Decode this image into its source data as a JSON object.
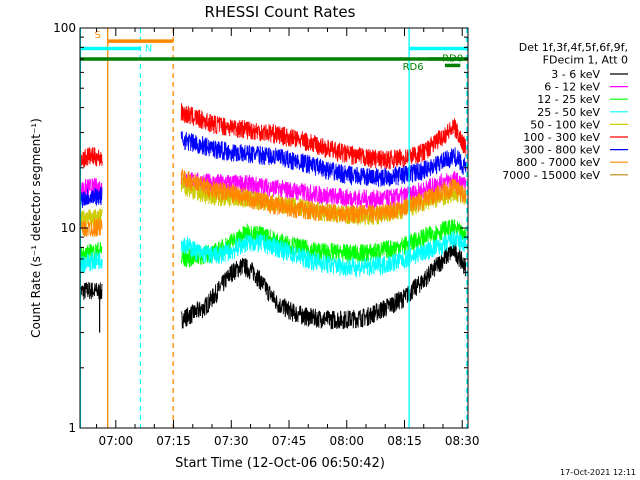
{
  "chart_data": {
    "type": "line",
    "title": "RHESSI Count Rates",
    "xlabel": "Start Time (12-Oct-06 06:50:42)",
    "ylabel": "Count Rate (s⁻¹ detector segment⁻¹)",
    "y_scale": "log",
    "ylim": [
      1,
      100
    ],
    "y_tick_labels": [
      "1",
      "10",
      "100"
    ],
    "xlim_minutes_since_0650": [
      0.7,
      101.5
    ],
    "x_ticks": [
      {
        "label": "07:00",
        "minute": 10
      },
      {
        "label": "07:15",
        "minute": 25
      },
      {
        "label": "07:30",
        "minute": 40
      },
      {
        "label": "07:45",
        "minute": 55
      },
      {
        "label": "08:00",
        "minute": 70
      },
      {
        "label": "08:15",
        "minute": 85
      },
      {
        "label": "08:30",
        "minute": 100
      }
    ],
    "legend_header": [
      "Det 1f,3f,4f,5f,6f,9f,",
      "FDecim 1, Att 0"
    ],
    "legend_position": "right",
    "series": [
      {
        "name": "3 - 6 keV",
        "color": "#000000",
        "segments": [
          {
            "start": 0.7,
            "points": [
              [
                0.7,
                4.8
              ],
              [
                3,
                4.9
              ],
              [
                6.5,
                4.8
              ]
            ]
          },
          {
            "start": 27,
            "points": [
              [
                27,
                3.5
              ],
              [
                33,
                4.0
              ],
              [
                37,
                5.0
              ],
              [
                40,
                6.0
              ],
              [
                43,
                6.5
              ],
              [
                46,
                6.0
              ],
              [
                49,
                5.0
              ],
              [
                52,
                4.2
              ],
              [
                56,
                3.8
              ],
              [
                60,
                3.6
              ],
              [
                65,
                3.5
              ],
              [
                70,
                3.5
              ],
              [
                75,
                3.6
              ],
              [
                80,
                4.0
              ],
              [
                85,
                4.5
              ],
              [
                90,
                5.5
              ],
              [
                95,
                7.0
              ],
              [
                98,
                7.8
              ],
              [
                101,
                6.3
              ]
            ]
          }
        ]
      },
      {
        "name": "6 - 12 keV",
        "color": "#ff00ff",
        "segments": [
          {
            "start": 0.7,
            "points": [
              [
                0.7,
                15.5
              ],
              [
                3,
                16
              ],
              [
                6.5,
                16
              ]
            ]
          },
          {
            "start": 27,
            "points": [
              [
                27,
                17.5
              ],
              [
                32,
                17
              ],
              [
                36,
                16.8
              ],
              [
                40,
                16.8
              ],
              [
                45,
                16.5
              ],
              [
                50,
                16
              ],
              [
                55,
                15.5
              ],
              [
                60,
                15
              ],
              [
                65,
                14.5
              ],
              [
                70,
                14.2
              ],
              [
                75,
                14
              ],
              [
                80,
                14
              ],
              [
                85,
                14.5
              ],
              [
                90,
                15.5
              ],
              [
                95,
                17
              ],
              [
                98,
                17.5
              ],
              [
                101,
                16
              ]
            ]
          }
        ]
      },
      {
        "name": "12 - 25 keV",
        "color": "#00ff00",
        "segments": [
          {
            "start": 0.7,
            "points": [
              [
                0.7,
                7.3
              ],
              [
                3,
                7.5
              ],
              [
                6.5,
                7.8
              ]
            ]
          },
          {
            "start": 27,
            "points": [
              [
                27,
                7.0
              ],
              [
                32,
                7.3
              ],
              [
                36,
                7.6
              ],
              [
                40,
                8.5
              ],
              [
                44,
                9.5
              ],
              [
                48,
                9.3
              ],
              [
                52,
                8.6
              ],
              [
                56,
                8.2
              ],
              [
                60,
                7.8
              ],
              [
                65,
                7.6
              ],
              [
                70,
                7.5
              ],
              [
                75,
                7.5
              ],
              [
                80,
                7.8
              ],
              [
                85,
                8.2
              ],
              [
                90,
                9.0
              ],
              [
                95,
                9.8
              ],
              [
                98,
                10.0
              ],
              [
                101,
                9.0
              ]
            ]
          }
        ]
      },
      {
        "name": "25 - 50 keV",
        "color": "#00ffff",
        "segments": [
          {
            "start": 0.7,
            "points": [
              [
                0.7,
                6.6
              ],
              [
                3,
                6.8
              ],
              [
                6.5,
                7.0
              ]
            ]
          },
          {
            "start": 27,
            "points": [
              [
                27,
                8.5
              ],
              [
                32,
                7.5
              ],
              [
                36,
                7.3
              ],
              [
                40,
                7.7
              ],
              [
                44,
                8.5
              ],
              [
                48,
                8.4
              ],
              [
                52,
                8.0
              ],
              [
                56,
                7.4
              ],
              [
                60,
                7.0
              ],
              [
                65,
                6.6
              ],
              [
                70,
                6.4
              ],
              [
                75,
                6.4
              ],
              [
                80,
                6.6
              ],
              [
                85,
                7.0
              ],
              [
                90,
                7.6
              ],
              [
                95,
                8.2
              ],
              [
                98,
                8.8
              ],
              [
                101,
                8.2
              ]
            ]
          }
        ]
      },
      {
        "name": "50 - 100 keV",
        "color": "#cccc00",
        "segments": [
          {
            "start": 0.7,
            "points": [
              [
                0.7,
                11
              ],
              [
                3,
                11.2
              ],
              [
                6.5,
                11.3
              ]
            ]
          },
          {
            "start": 27,
            "points": [
              [
                27,
                16.5
              ],
              [
                32,
                15
              ],
              [
                36,
                14.5
              ],
              [
                40,
                14.3
              ],
              [
                45,
                14
              ],
              [
                50,
                13.5
              ],
              [
                55,
                13
              ],
              [
                60,
                12.5
              ],
              [
                65,
                12
              ],
              [
                70,
                11.7
              ],
              [
                75,
                11.5
              ],
              [
                80,
                11.8
              ],
              [
                85,
                12.5
              ],
              [
                90,
                13.5
              ],
              [
                95,
                14.5
              ],
              [
                98,
                15
              ],
              [
                101,
                14.5
              ]
            ]
          }
        ]
      },
      {
        "name": "100 - 300 keV",
        "color": "#ff0000",
        "segments": [
          {
            "start": 0.7,
            "points": [
              [
                0.7,
                22
              ],
              [
                3,
                23
              ],
              [
                6.5,
                22.5
              ]
            ]
          },
          {
            "start": 27,
            "points": [
              [
                27,
                38
              ],
              [
                32,
                35
              ],
              [
                36,
                33
              ],
              [
                40,
                32
              ],
              [
                45,
                31
              ],
              [
                50,
                30
              ],
              [
                55,
                28.5
              ],
              [
                60,
                27
              ],
              [
                65,
                25
              ],
              [
                70,
                23.5
              ],
              [
                75,
                22.5
              ],
              [
                80,
                22
              ],
              [
                85,
                22.5
              ],
              [
                90,
                24
              ],
              [
                95,
                29
              ],
              [
                98,
                32
              ],
              [
                101,
                25
              ]
            ]
          }
        ]
      },
      {
        "name": "300 - 800 keV",
        "color": "#0000ff",
        "segments": [
          {
            "start": 0.7,
            "points": [
              [
                0.7,
                14
              ],
              [
                3,
                14.5
              ],
              [
                6.5,
                14.5
              ]
            ]
          },
          {
            "start": 27,
            "points": [
              [
                27,
                28
              ],
              [
                32,
                26
              ],
              [
                36,
                25
              ],
              [
                40,
                24
              ],
              [
                45,
                23.5
              ],
              [
                50,
                23
              ],
              [
                55,
                22
              ],
              [
                60,
                21
              ],
              [
                65,
                19.5
              ],
              [
                70,
                18.5
              ],
              [
                75,
                18
              ],
              [
                80,
                18
              ],
              [
                85,
                18.5
              ],
              [
                90,
                19.5
              ],
              [
                95,
                21.5
              ],
              [
                98,
                23
              ],
              [
                101,
                20
              ]
            ]
          }
        ]
      },
      {
        "name": "800 - 7000 keV",
        "color": "#ff8800",
        "segments": [
          {
            "start": 0.7,
            "points": [
              [
                0.7,
                9.8
              ],
              [
                3,
                10
              ],
              [
                6.5,
                10.2
              ]
            ]
          },
          {
            "start": 27,
            "points": [
              [
                27,
                18
              ],
              [
                32,
                16.5
              ],
              [
                36,
                15.5
              ],
              [
                40,
                15
              ],
              [
                45,
                14
              ],
              [
                50,
                13.2
              ],
              [
                55,
                12.7
              ],
              [
                60,
                12.3
              ],
              [
                65,
                12
              ],
              [
                70,
                11.8
              ],
              [
                75,
                11.8
              ],
              [
                80,
                12
              ],
              [
                85,
                12.8
              ],
              [
                90,
                13.8
              ],
              [
                95,
                15.3
              ],
              [
                98,
                16
              ],
              [
                101,
                14.5
              ]
            ]
          }
        ]
      },
      {
        "name": "7000 - 15000 keV",
        "color": "#b8860b",
        "segments": []
      }
    ],
    "vertical_lines": [
      {
        "minute": 0.8,
        "color": "#00ffff",
        "style": "solid"
      },
      {
        "minute": 7.9,
        "color": "#ff8800",
        "style": "solid"
      },
      {
        "minute": 16.4,
        "color": "#00ffff",
        "style": "dashed"
      },
      {
        "minute": 24.9,
        "color": "#ff8800",
        "style": "dashed"
      },
      {
        "minute": 86.2,
        "color": "#00ffff",
        "style": "solid"
      },
      {
        "minute": 101.2,
        "color": "#00ffff",
        "style": "dashed"
      }
    ],
    "flag_bars": [
      {
        "label": "S",
        "color": "#ff8800",
        "from": 7.9,
        "to": 24.9,
        "y": 86
      },
      {
        "label": "N",
        "color": "#00ffff",
        "from": 0.8,
        "to": 16.4,
        "y": 79
      },
      {
        "label": "",
        "color": "#00ffff",
        "from": 86.2,
        "to": 101.2,
        "y": 79
      },
      {
        "label": "",
        "color": "#008000",
        "from": 0.8,
        "to": 101.5,
        "y": 70
      },
      {
        "label": "RD0",
        "color": "#008000",
        "from": 95.5,
        "to": 99.5,
        "y": 65
      },
      {
        "label": "RD6",
        "color": "#008000",
        "from": 91,
        "to": 101.5,
        "y": 70
      }
    ],
    "data_gap_minutes": [
      6.5,
      27
    ],
    "dip_marker": {
      "minute": 5.8,
      "from": 4.6,
      "to": 3.0,
      "color": "#000000"
    }
  },
  "footer": {
    "date_stamp": "17-Oct-2021 12:11"
  }
}
